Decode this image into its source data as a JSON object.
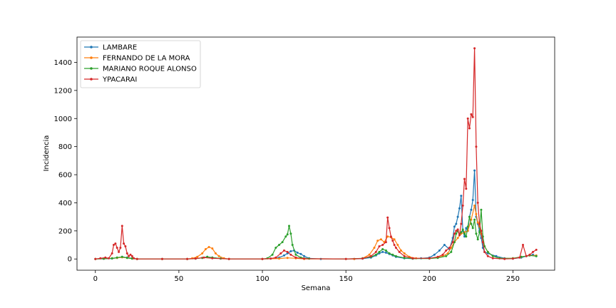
{
  "chart_data": {
    "type": "line",
    "xlabel": "Semana",
    "ylabel": "Incidencia",
    "xlim": [
      -11,
      275
    ],
    "ylim": [
      -80,
      1580
    ],
    "xticks": [
      0,
      50,
      100,
      150,
      200,
      250
    ],
    "yticks": [
      0,
      200,
      400,
      600,
      800,
      1000,
      1200,
      1400
    ],
    "grid": false,
    "legend_position": "top-left",
    "series": [
      {
        "name": "LAMBARE",
        "color": "#1f77b4",
        "points": [
          [
            0,
            0
          ],
          [
            5,
            1
          ],
          [
            10,
            3
          ],
          [
            13,
            8
          ],
          [
            16,
            15
          ],
          [
            19,
            10
          ],
          [
            22,
            5
          ],
          [
            25,
            0
          ],
          [
            40,
            0
          ],
          [
            55,
            0
          ],
          [
            60,
            3
          ],
          [
            64,
            8
          ],
          [
            67,
            15
          ],
          [
            70,
            10
          ],
          [
            75,
            3
          ],
          [
            80,
            0
          ],
          [
            100,
            0
          ],
          [
            105,
            2
          ],
          [
            110,
            10
          ],
          [
            113,
            25
          ],
          [
            115,
            40
          ],
          [
            117,
            55
          ],
          [
            119,
            60
          ],
          [
            121,
            45
          ],
          [
            123,
            35
          ],
          [
            125,
            20
          ],
          [
            128,
            5
          ],
          [
            135,
            0
          ],
          [
            155,
            0
          ],
          [
            160,
            2
          ],
          [
            165,
            10
          ],
          [
            168,
            25
          ],
          [
            170,
            40
          ],
          [
            172,
            50
          ],
          [
            174,
            45
          ],
          [
            176,
            35
          ],
          [
            178,
            25
          ],
          [
            180,
            15
          ],
          [
            185,
            5
          ],
          [
            190,
            2
          ],
          [
            195,
            5
          ],
          [
            200,
            10
          ],
          [
            203,
            30
          ],
          [
            206,
            60
          ],
          [
            209,
            100
          ],
          [
            212,
            70
          ],
          [
            214,
            150
          ],
          [
            215,
            230
          ],
          [
            216,
            250
          ],
          [
            217,
            300
          ],
          [
            218,
            360
          ],
          [
            219,
            450
          ],
          [
            220,
            200
          ],
          [
            221,
            160
          ],
          [
            222,
            220
          ],
          [
            223,
            200
          ],
          [
            224,
            300
          ],
          [
            225,
            350
          ],
          [
            226,
            420
          ],
          [
            227,
            630
          ],
          [
            228,
            300
          ],
          [
            229,
            250
          ],
          [
            230,
            200
          ],
          [
            231,
            150
          ],
          [
            232,
            80
          ],
          [
            233,
            50
          ],
          [
            235,
            40
          ],
          [
            240,
            20
          ],
          [
            245,
            5
          ],
          [
            250,
            2
          ],
          [
            255,
            10
          ],
          [
            258,
            20
          ],
          [
            262,
            30
          ],
          [
            264,
            20
          ]
        ]
      },
      {
        "name": "FERNANDO DE LA MORA",
        "color": "#ff7f0e",
        "points": [
          [
            0,
            0
          ],
          [
            5,
            2
          ],
          [
            10,
            5
          ],
          [
            13,
            8
          ],
          [
            16,
            12
          ],
          [
            19,
            8
          ],
          [
            22,
            3
          ],
          [
            25,
            0
          ],
          [
            40,
            0
          ],
          [
            55,
            0
          ],
          [
            58,
            5
          ],
          [
            61,
            15
          ],
          [
            64,
            40
          ],
          [
            66,
            70
          ],
          [
            68,
            85
          ],
          [
            70,
            75
          ],
          [
            72,
            40
          ],
          [
            74,
            20
          ],
          [
            77,
            5
          ],
          [
            80,
            0
          ],
          [
            100,
            0
          ],
          [
            110,
            3
          ],
          [
            115,
            8
          ],
          [
            120,
            5
          ],
          [
            125,
            0
          ],
          [
            155,
            0
          ],
          [
            160,
            5
          ],
          [
            164,
            30
          ],
          [
            167,
            80
          ],
          [
            169,
            130
          ],
          [
            171,
            140
          ],
          [
            173,
            120
          ],
          [
            175,
            160
          ],
          [
            177,
            155
          ],
          [
            179,
            140
          ],
          [
            181,
            100
          ],
          [
            183,
            60
          ],
          [
            185,
            40
          ],
          [
            188,
            15
          ],
          [
            192,
            5
          ],
          [
            200,
            5
          ],
          [
            205,
            10
          ],
          [
            208,
            20
          ],
          [
            211,
            40
          ],
          [
            213,
            80
          ],
          [
            215,
            120
          ],
          [
            217,
            150
          ],
          [
            219,
            180
          ],
          [
            221,
            190
          ],
          [
            223,
            200
          ],
          [
            225,
            280
          ],
          [
            227,
            380
          ],
          [
            228,
            320
          ],
          [
            229,
            260
          ],
          [
            230,
            230
          ],
          [
            231,
            180
          ],
          [
            232,
            120
          ],
          [
            233,
            90
          ],
          [
            235,
            50
          ],
          [
            238,
            20
          ],
          [
            242,
            5
          ],
          [
            250,
            5
          ],
          [
            255,
            15
          ],
          [
            260,
            25
          ],
          [
            264,
            25
          ]
        ]
      },
      {
        "name": "MARIANO ROQUE ALONSO",
        "color": "#2ca02c",
        "points": [
          [
            0,
            0
          ],
          [
            5,
            2
          ],
          [
            10,
            5
          ],
          [
            13,
            10
          ],
          [
            16,
            15
          ],
          [
            19,
            8
          ],
          [
            22,
            2
          ],
          [
            25,
            0
          ],
          [
            40,
            0
          ],
          [
            55,
            0
          ],
          [
            60,
            2
          ],
          [
            64,
            8
          ],
          [
            67,
            15
          ],
          [
            70,
            10
          ],
          [
            75,
            3
          ],
          [
            80,
            0
          ],
          [
            100,
            0
          ],
          [
            103,
            5
          ],
          [
            106,
            30
          ],
          [
            108,
            80
          ],
          [
            110,
            100
          ],
          [
            112,
            120
          ],
          [
            114,
            160
          ],
          [
            115,
            175
          ],
          [
            116,
            235
          ],
          [
            117,
            180
          ],
          [
            118,
            100
          ],
          [
            120,
            30
          ],
          [
            123,
            10
          ],
          [
            128,
            2
          ],
          [
            150,
            0
          ],
          [
            160,
            5
          ],
          [
            165,
            15
          ],
          [
            168,
            30
          ],
          [
            170,
            50
          ],
          [
            172,
            70
          ],
          [
            174,
            60
          ],
          [
            176,
            40
          ],
          [
            178,
            30
          ],
          [
            180,
            20
          ],
          [
            185,
            8
          ],
          [
            190,
            3
          ],
          [
            200,
            3
          ],
          [
            205,
            8
          ],
          [
            210,
            20
          ],
          [
            213,
            50
          ],
          [
            215,
            120
          ],
          [
            216,
            180
          ],
          [
            217,
            200
          ],
          [
            218,
            170
          ],
          [
            219,
            190
          ],
          [
            220,
            210
          ],
          [
            221,
            180
          ],
          [
            222,
            160
          ],
          [
            223,
            230
          ],
          [
            224,
            300
          ],
          [
            225,
            250
          ],
          [
            226,
            220
          ],
          [
            227,
            280
          ],
          [
            228,
            180
          ],
          [
            229,
            140
          ],
          [
            230,
            190
          ],
          [
            231,
            350
          ],
          [
            232,
            160
          ],
          [
            233,
            90
          ],
          [
            235,
            50
          ],
          [
            238,
            20
          ],
          [
            242,
            5
          ],
          [
            250,
            5
          ],
          [
            255,
            15
          ],
          [
            260,
            25
          ],
          [
            264,
            20
          ]
        ]
      },
      {
        "name": "YPACARAI",
        "color": "#d62728",
        "points": [
          [
            0,
            0
          ],
          [
            3,
            5
          ],
          [
            6,
            10
          ],
          [
            8,
            5
          ],
          [
            10,
            40
          ],
          [
            11,
            100
          ],
          [
            12,
            110
          ],
          [
            13,
            80
          ],
          [
            14,
            50
          ],
          [
            15,
            80
          ],
          [
            16,
            235
          ],
          [
            17,
            110
          ],
          [
            18,
            90
          ],
          [
            19,
            40
          ],
          [
            20,
            20
          ],
          [
            21,
            30
          ],
          [
            22,
            20
          ],
          [
            23,
            5
          ],
          [
            25,
            0
          ],
          [
            40,
            0
          ],
          [
            55,
            0
          ],
          [
            60,
            3
          ],
          [
            65,
            10
          ],
          [
            70,
            5
          ],
          [
            80,
            0
          ],
          [
            100,
            0
          ],
          [
            105,
            3
          ],
          [
            108,
            10
          ],
          [
            111,
            40
          ],
          [
            113,
            60
          ],
          [
            115,
            50
          ],
          [
            117,
            30
          ],
          [
            120,
            10
          ],
          [
            125,
            2
          ],
          [
            150,
            0
          ],
          [
            160,
            3
          ],
          [
            165,
            20
          ],
          [
            168,
            50
          ],
          [
            170,
            90
          ],
          [
            172,
            100
          ],
          [
            174,
            120
          ],
          [
            175,
            295
          ],
          [
            176,
            220
          ],
          [
            177,
            160
          ],
          [
            178,
            130
          ],
          [
            179,
            100
          ],
          [
            180,
            80
          ],
          [
            182,
            50
          ],
          [
            185,
            20
          ],
          [
            190,
            5
          ],
          [
            200,
            5
          ],
          [
            205,
            15
          ],
          [
            208,
            30
          ],
          [
            210,
            60
          ],
          [
            212,
            80
          ],
          [
            214,
            120
          ],
          [
            215,
            180
          ],
          [
            216,
            200
          ],
          [
            217,
            210
          ],
          [
            218,
            170
          ],
          [
            219,
            250
          ],
          [
            220,
            380
          ],
          [
            221,
            570
          ],
          [
            222,
            500
          ],
          [
            223,
            1000
          ],
          [
            224,
            930
          ],
          [
            225,
            1030
          ],
          [
            226,
            1010
          ],
          [
            227,
            1500
          ],
          [
            228,
            800
          ],
          [
            229,
            400
          ],
          [
            230,
            250
          ],
          [
            231,
            200
          ],
          [
            232,
            120
          ],
          [
            233,
            50
          ],
          [
            235,
            20
          ],
          [
            238,
            5
          ],
          [
            245,
            0
          ],
          [
            250,
            2
          ],
          [
            254,
            10
          ],
          [
            256,
            100
          ],
          [
            258,
            20
          ],
          [
            260,
            30
          ],
          [
            262,
            50
          ],
          [
            264,
            65
          ]
        ]
      }
    ]
  }
}
